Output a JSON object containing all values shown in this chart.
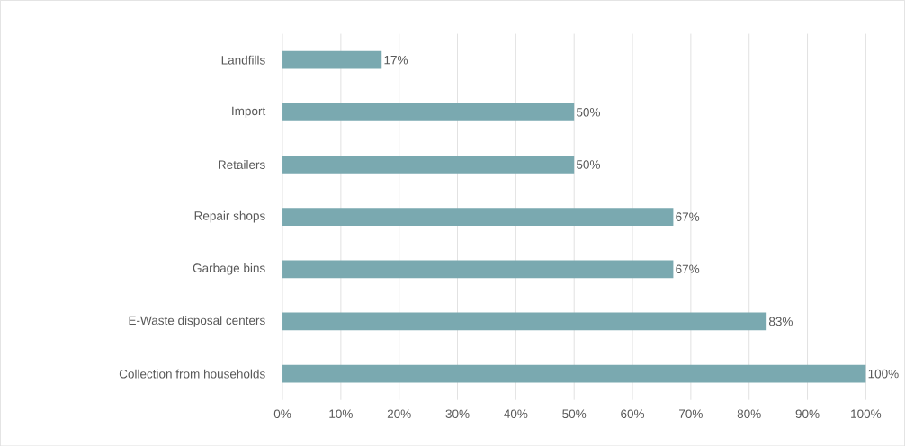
{
  "chart_data": {
    "type": "bar",
    "orientation": "horizontal",
    "categories": [
      "Landfills",
      "Import",
      "Retailers",
      "Repair shops",
      "Garbage bins",
      "E-Waste disposal centers",
      "Collection from households"
    ],
    "values": [
      17,
      50,
      50,
      67,
      67,
      83,
      100
    ],
    "value_labels": [
      "17%",
      "50%",
      "50%",
      "67%",
      "67%",
      "83%",
      "100%"
    ],
    "color": "#7aa9b0",
    "xlim": [
      0,
      100
    ],
    "xticks": [
      {
        "value": 0,
        "label": "0%"
      },
      {
        "value": 10,
        "label": "10%"
      },
      {
        "value": 20,
        "label": "20%"
      },
      {
        "value": 30,
        "label": "30%"
      },
      {
        "value": 40,
        "label": "40%"
      },
      {
        "value": 50,
        "label": "50%"
      },
      {
        "value": 60,
        "label": "60%"
      },
      {
        "value": 70,
        "label": "70%"
      },
      {
        "value": 80,
        "label": "80%"
      },
      {
        "value": 90,
        "label": "90%"
      },
      {
        "value": 100,
        "label": "100%"
      }
    ],
    "grid": "x"
  }
}
